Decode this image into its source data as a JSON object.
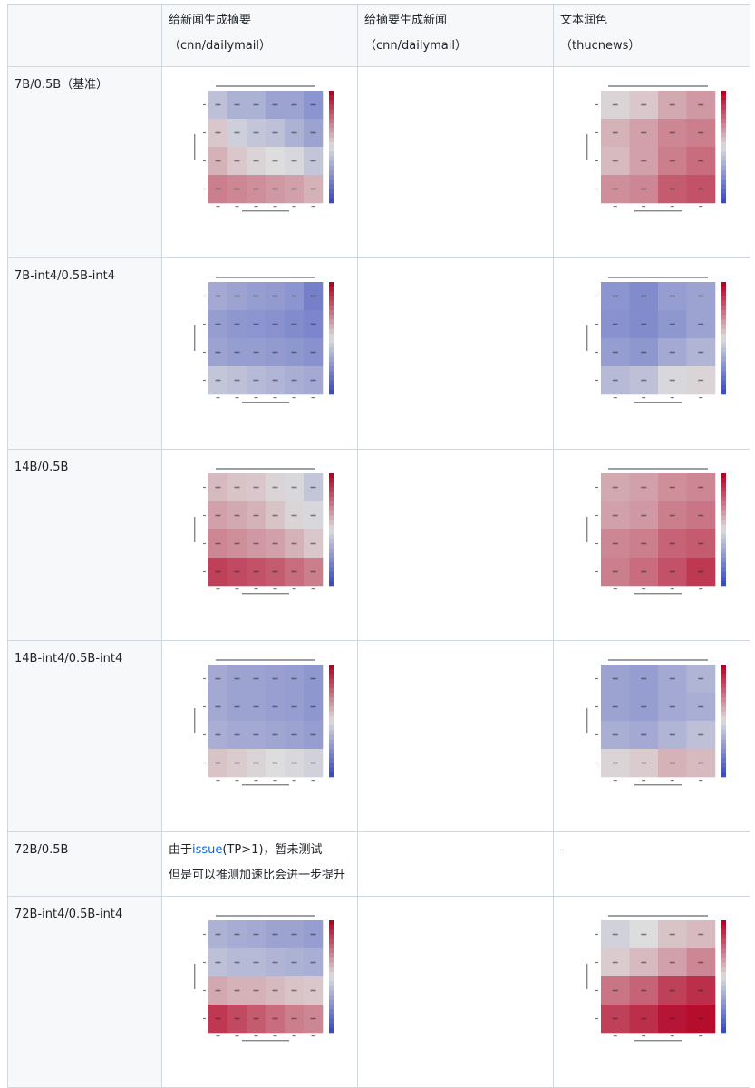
{
  "header": {
    "col0": "",
    "col1_line1": "给新闻生成摘要",
    "col1_line2": "（cnn/dailymail）",
    "col2_line1": "给摘要生成新闻",
    "col2_line2": "（cnn/dailymail）",
    "col3_line1": "文本润色",
    "col3_line2": "（thucnews）"
  },
  "rows": [
    {
      "label": "7B/0.5B（基准）"
    },
    {
      "label": "7B-int4/0.5B-int4"
    },
    {
      "label": "14B/0.5B"
    },
    {
      "label": "14B-int4/0.5B-int4"
    },
    {
      "label": "72B/0.5B",
      "note_prefix": "由于",
      "note_link": "issue",
      "note_suffix": "(TP>1)，暂未测试",
      "note_line2": "但是可以推测加速比会进一步提升",
      "col3": "-"
    },
    {
      "label": "72B-int4/0.5B-int4"
    }
  ],
  "colors": {
    "cold": "#3b4cc0",
    "neutral": "#dddddd",
    "hot": "#b40426",
    "link": "#0969da"
  },
  "heatmaps": {
    "r0c1": [
      [
        0.4,
        0.35,
        0.35,
        0.3,
        0.3,
        0.25
      ],
      [
        0.55,
        0.45,
        0.42,
        0.4,
        0.35,
        0.3
      ],
      [
        0.6,
        0.55,
        0.52,
        0.5,
        0.48,
        0.42
      ],
      [
        0.72,
        0.7,
        0.68,
        0.66,
        0.64,
        0.6
      ]
    ],
    "r0c3": [
      [
        0.52,
        0.55,
        0.62,
        0.66
      ],
      [
        0.6,
        0.64,
        0.7,
        0.72
      ],
      [
        0.58,
        0.64,
        0.72,
        0.76
      ],
      [
        0.68,
        0.7,
        0.8,
        0.82
      ]
    ],
    "r1c1": [
      [
        0.32,
        0.3,
        0.28,
        0.27,
        0.25,
        0.18
      ],
      [
        0.28,
        0.26,
        0.25,
        0.24,
        0.22,
        0.2
      ],
      [
        0.3,
        0.28,
        0.28,
        0.27,
        0.26,
        0.24
      ],
      [
        0.42,
        0.4,
        0.38,
        0.36,
        0.34,
        0.32
      ]
    ],
    "r1c3": [
      [
        0.25,
        0.22,
        0.28,
        0.3
      ],
      [
        0.24,
        0.22,
        0.26,
        0.3
      ],
      [
        0.28,
        0.26,
        0.32,
        0.36
      ],
      [
        0.38,
        0.4,
        0.48,
        0.52
      ]
    ],
    "r2c1": [
      [
        0.58,
        0.56,
        0.55,
        0.52,
        0.48,
        0.42
      ],
      [
        0.64,
        0.62,
        0.6,
        0.56,
        0.52,
        0.48
      ],
      [
        0.7,
        0.68,
        0.66,
        0.64,
        0.6,
        0.55
      ],
      [
        0.86,
        0.84,
        0.82,
        0.8,
        0.76,
        0.72
      ]
    ],
    "r2c3": [
      [
        0.62,
        0.64,
        0.68,
        0.7
      ],
      [
        0.64,
        0.66,
        0.72,
        0.74
      ],
      [
        0.7,
        0.72,
        0.78,
        0.8
      ],
      [
        0.72,
        0.76,
        0.82,
        0.88
      ]
    ],
    "r3c1": [
      [
        0.32,
        0.3,
        0.3,
        0.29,
        0.28,
        0.26
      ],
      [
        0.32,
        0.3,
        0.3,
        0.29,
        0.28,
        0.26
      ],
      [
        0.34,
        0.32,
        0.32,
        0.31,
        0.3,
        0.28
      ],
      [
        0.56,
        0.54,
        0.52,
        0.5,
        0.48,
        0.46
      ]
    ],
    "r3c3": [
      [
        0.3,
        0.28,
        0.32,
        0.36
      ],
      [
        0.3,
        0.28,
        0.32,
        0.34
      ],
      [
        0.34,
        0.32,
        0.36,
        0.4
      ],
      [
        0.52,
        0.54,
        0.6,
        0.58
      ]
    ],
    "r5c1": [
      [
        0.35,
        0.33,
        0.32,
        0.3,
        0.3,
        0.28
      ],
      [
        0.4,
        0.38,
        0.38,
        0.36,
        0.35,
        0.34
      ],
      [
        0.62,
        0.6,
        0.6,
        0.58,
        0.56,
        0.55
      ],
      [
        0.88,
        0.84,
        0.8,
        0.76,
        0.72,
        0.7
      ]
    ],
    "r5c3": [
      [
        0.46,
        0.5,
        0.56,
        0.58
      ],
      [
        0.54,
        0.58,
        0.64,
        0.7
      ],
      [
        0.74,
        0.78,
        0.86,
        0.9
      ],
      [
        0.86,
        0.9,
        0.96,
        0.98
      ]
    ]
  }
}
